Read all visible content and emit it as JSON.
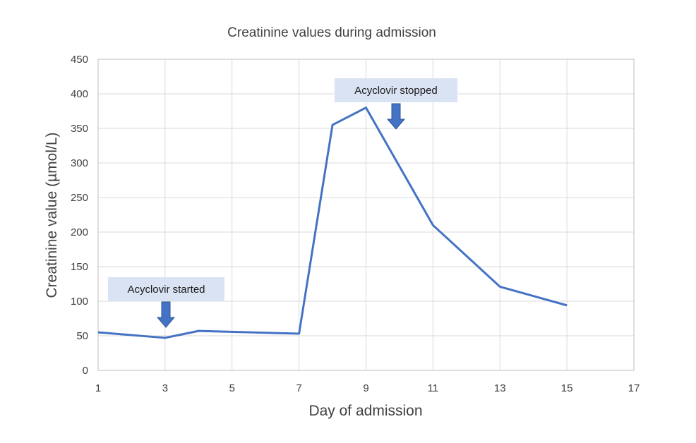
{
  "chart_data": {
    "type": "line",
    "title": "Creatinine values during admission",
    "xlabel": "Day of admission",
    "ylabel": "Creatinine value (µmol/L)",
    "xlim": [
      1,
      17
    ],
    "ylim": [
      0,
      450
    ],
    "x_ticks": [
      1,
      3,
      5,
      7,
      9,
      11,
      13,
      15,
      17
    ],
    "y_ticks": [
      0,
      50,
      100,
      150,
      200,
      250,
      300,
      350,
      400,
      450
    ],
    "grid": true,
    "legend": null,
    "series": [
      {
        "name": "Creatinine",
        "color": "#4472C4",
        "x": [
          1,
          3,
          4,
          7,
          8,
          9,
          11,
          13,
          15
        ],
        "values": [
          55,
          47,
          57,
          53,
          355,
          380,
          210,
          121,
          94
        ]
      }
    ],
    "annotations": [
      {
        "text": "Acyclovir started",
        "x": 3,
        "arrow": "down"
      },
      {
        "text": "Acyclovir stopped",
        "x": 10,
        "arrow": "down"
      }
    ]
  }
}
